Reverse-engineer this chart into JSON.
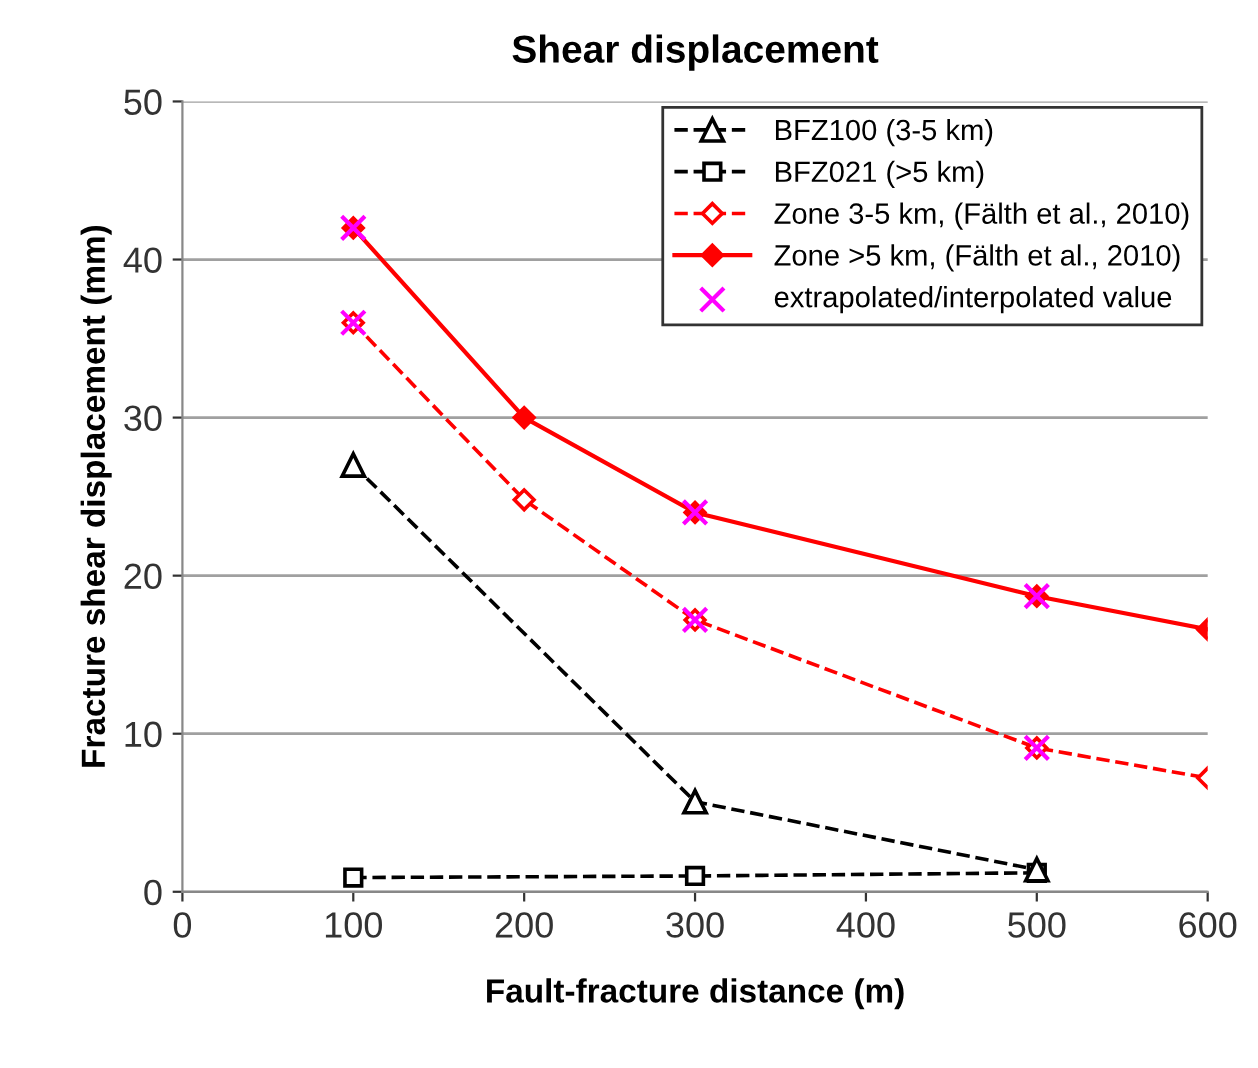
{
  "chart_data": {
    "type": "line",
    "title": "Shear displacement",
    "xlabel": "Fault-fracture distance (m)",
    "ylabel": "Fracture shear displacement (mm)",
    "xlim": [
      0,
      600
    ],
    "xticks": [
      0,
      100,
      200,
      300,
      400,
      500,
      600
    ],
    "ylim": [
      0,
      50
    ],
    "yticks": [
      0,
      10,
      20,
      30,
      40,
      50
    ],
    "grid": "y",
    "legend": "top right",
    "series": [
      {
        "name": "BFZ100 (3-5 km)",
        "color": "#000000",
        "marker": "triangle",
        "line_style": "dashed",
        "x": [
          100,
          300,
          500
        ],
        "values": [
          27,
          5.7,
          1.4
        ]
      },
      {
        "name": "BFZ021 (>5 km)",
        "color": "#000000",
        "marker": "square",
        "line_style": "dashed",
        "x": [
          100,
          300,
          500
        ],
        "values": [
          0.9,
          1.0,
          1.2
        ]
      },
      {
        "name": "Zone 3-5 km, (Fälth et al., 2010)",
        "color": "#ff0000",
        "marker": "diamond",
        "line_style": "dashed",
        "x": [
          100,
          200,
          300,
          500,
          600
        ],
        "values": [
          36,
          24.8,
          17.2,
          9.1,
          7.2
        ]
      },
      {
        "name": "Zone >5 km, (Fälth et al., 2010)",
        "color": "#ff0000",
        "marker": "diamond",
        "line_style": "solid",
        "x": [
          100,
          200,
          300,
          500,
          600
        ],
        "values": [
          42,
          30,
          24,
          18.7,
          16.6
        ]
      },
      {
        "name": "extrapolated/interpolated value",
        "type": "scatter",
        "color": "#ff00ff",
        "marker": "cross",
        "x": [
          100,
          300,
          500,
          100,
          300,
          500
        ],
        "values": [
          42,
          24,
          18.7,
          36,
          17.2,
          9.1
        ]
      }
    ]
  }
}
